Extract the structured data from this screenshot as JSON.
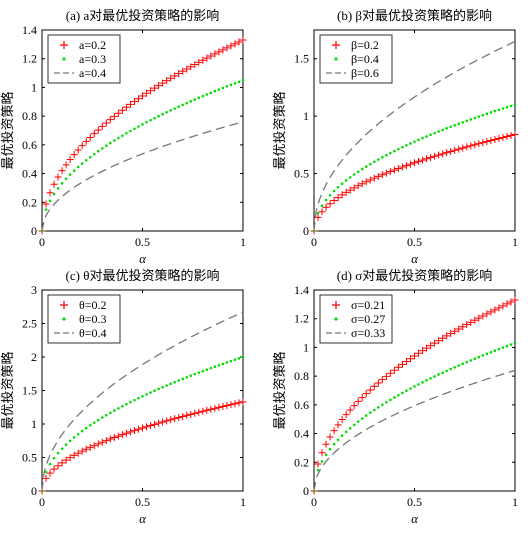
{
  "colors": {
    "series1": "#ff0000",
    "series2": "#00dd00",
    "series3": "#777777"
  },
  "chart_data": [
    {
      "type": "line",
      "title": "(a) a对最优投资策略的影响",
      "xlabel": "α",
      "ylabel": "最优投资策略",
      "xlim": [
        0,
        1
      ],
      "ylim": [
        0,
        1.4
      ],
      "xticks": [
        "0",
        "0.5",
        "1"
      ],
      "yticks": [
        "0",
        "0.2",
        "0.4",
        "0.6",
        "0.8",
        "1",
        "1.2",
        "1.4"
      ],
      "legend": "top-left",
      "series": [
        {
          "name": "a=0.2",
          "style": "plus",
          "coef": 1.33
        },
        {
          "name": "a=0.3",
          "style": "dot",
          "coef": 1.05
        },
        {
          "name": "a=0.4",
          "style": "dashed",
          "coef": 0.76
        }
      ]
    },
    {
      "type": "line",
      "title": "(b) β对最优投资策略的影响",
      "xlabel": "α",
      "ylabel": "最优投资策略",
      "xlim": [
        0,
        1
      ],
      "ylim": [
        0,
        1.75
      ],
      "xticks": [
        "0",
        "0.5",
        "1"
      ],
      "yticks": [
        "0",
        "0.5",
        "1",
        "1.5"
      ],
      "legend": "top-left",
      "series": [
        {
          "name": "β=0.2",
          "style": "plus",
          "coef": 0.84
        },
        {
          "name": "β=0.4",
          "style": "dot",
          "coef": 1.1
        },
        {
          "name": "β=0.6",
          "style": "dashed",
          "coef": 1.65
        }
      ]
    },
    {
      "type": "line",
      "title": "(c) θ对最优投资策略的影响",
      "xlabel": "α",
      "ylabel": "最优投资策略",
      "xlim": [
        0,
        1
      ],
      "ylim": [
        0,
        3
      ],
      "xticks": [
        "0",
        "0.5",
        "1"
      ],
      "yticks": [
        "0",
        "0.5",
        "1",
        "1.5",
        "2",
        "2.5",
        "3"
      ],
      "legend": "top-left",
      "series": [
        {
          "name": "θ=0.2",
          "style": "plus",
          "coef": 1.33
        },
        {
          "name": "θ=0.3",
          "style": "dot",
          "coef": 2.0
        },
        {
          "name": "θ=0.4",
          "style": "dashed",
          "coef": 2.67
        }
      ]
    },
    {
      "type": "line",
      "title": "(d) σ对最优投资策略的影响",
      "xlabel": "α",
      "ylabel": "最优投资策略",
      "xlim": [
        0,
        1
      ],
      "ylim": [
        0,
        1.4
      ],
      "xticks": [
        "0",
        "0.5",
        "1"
      ],
      "yticks": [
        "0",
        "0.2",
        "0.4",
        "0.6",
        "0.8",
        "1",
        "1.2",
        "1.4"
      ],
      "legend": "top-left",
      "series": [
        {
          "name": "σ=0.21",
          "style": "plus",
          "coef": 1.33
        },
        {
          "name": "σ=0.27",
          "style": "dot",
          "coef": 1.03
        },
        {
          "name": "σ=0.33",
          "style": "dashed",
          "coef": 0.84
        }
      ]
    }
  ]
}
